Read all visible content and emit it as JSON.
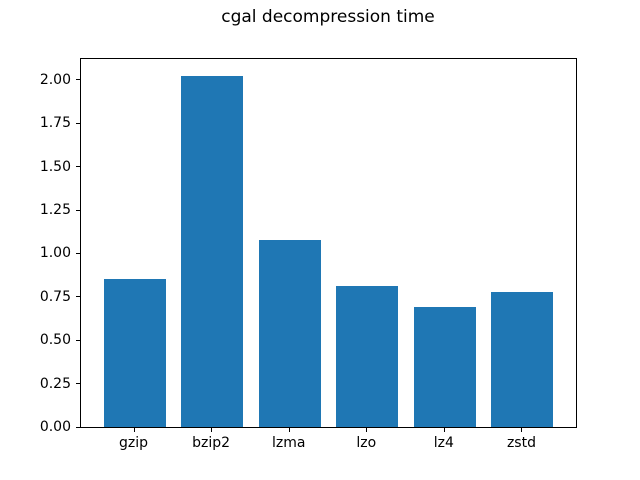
{
  "figure": {
    "background": "#ffffff",
    "text_color": "#000000"
  },
  "chart_data": {
    "type": "bar",
    "title": "cgal decompression time",
    "xlabel": "",
    "ylabel": "",
    "categories": [
      "gzip",
      "bzip2",
      "lzma",
      "lzo",
      "lz4",
      "zstd"
    ],
    "values": [
      0.85,
      2.02,
      1.08,
      0.81,
      0.69,
      0.78
    ],
    "bar_color": "#1f77b4",
    "bar_width": 0.8,
    "xlim": [
      -0.69,
      5.69
    ],
    "ylim": [
      0,
      2.12
    ],
    "y_ticks": [
      0,
      0.25,
      0.5,
      0.75,
      1.0,
      1.25,
      1.5,
      1.75,
      2.0
    ],
    "y_tick_labels": [
      "0.00",
      "0.25",
      "0.50",
      "0.75",
      "1.00",
      "1.25",
      "1.50",
      "1.75",
      "2.00"
    ],
    "grid": false,
    "legend": false
  }
}
